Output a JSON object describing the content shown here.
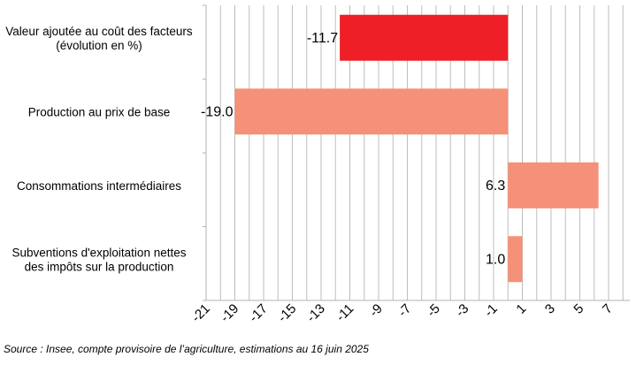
{
  "chart_data": {
    "type": "bar",
    "orientation": "horizontal",
    "categories": [
      [
        "Valeur ajoutée au coût des facteurs",
        "(évolution en %)"
      ],
      [
        "Production au prix de base"
      ],
      [
        "Consommations intermédiaires"
      ],
      [
        "Subventions d'exploitation nettes",
        "des impôts sur la production"
      ]
    ],
    "values": [
      -11.7,
      -19.0,
      6.3,
      1.0
    ],
    "value_labels": [
      "-11.7",
      "-19.0",
      "6.3",
      "1.0"
    ],
    "colors": [
      "#ee1f26",
      "#f59178",
      "#f59178",
      "#f59178"
    ],
    "xlim": [
      -21,
      8
    ],
    "xticks": [
      -21,
      -19,
      -17,
      -15,
      -13,
      -11,
      -9,
      -7,
      -5,
      -3,
      -1,
      1,
      3,
      5,
      7
    ],
    "grid": true,
    "title": "",
    "xlabel": "",
    "ylabel": ""
  },
  "source": "Source : Insee, compte provisoire de l’agriculture, estimations au 16 juin 2025"
}
